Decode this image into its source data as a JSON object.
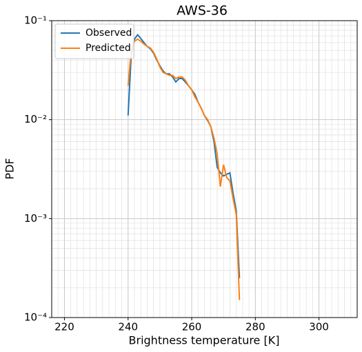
{
  "chart_data": {
    "type": "line",
    "title": "AWS-36",
    "x_label": "Brightness temperature [K]",
    "y_label": "PDF",
    "x": [
      240,
      241,
      242,
      243,
      244,
      245,
      246,
      247,
      248,
      249,
      250,
      251,
      252,
      253,
      254,
      255,
      256,
      257,
      258,
      259,
      260,
      261,
      262,
      263,
      264,
      265,
      266,
      267,
      268,
      269,
      270,
      271,
      272,
      273,
      274,
      275
    ],
    "series": [
      {
        "name": "Observed",
        "color": "#1f77b4",
        "values": [
          0.011,
          0.045,
          0.065,
          0.072,
          0.066,
          0.06,
          0.055,
          0.052,
          0.047,
          0.04,
          0.035,
          0.031,
          0.029,
          0.029,
          0.027,
          0.024,
          0.026,
          0.026,
          0.024,
          0.022,
          0.02,
          0.018,
          0.015,
          0.013,
          0.011,
          0.0098,
          0.0085,
          0.006,
          0.0033,
          0.0029,
          0.0027,
          0.0028,
          0.0029,
          0.0018,
          0.0012,
          0.00025
        ]
      },
      {
        "name": "Predicted",
        "color": "#ff7f0e",
        "values": [
          0.022,
          0.05,
          0.062,
          0.065,
          0.062,
          0.058,
          0.055,
          0.053,
          0.048,
          0.041,
          0.034,
          0.03,
          0.029,
          0.028,
          0.028,
          0.026,
          0.027,
          0.027,
          0.025,
          0.022,
          0.02,
          0.017,
          0.015,
          0.013,
          0.011,
          0.01,
          0.0085,
          0.0065,
          0.0045,
          0.0021,
          0.0035,
          0.0026,
          0.0024,
          0.0016,
          0.0011,
          0.00015
        ]
      }
    ],
    "xlim": [
      216,
      312
    ],
    "xticks": [
      220,
      240,
      260,
      280,
      300
    ],
    "ylim": [
      0.0001,
      0.1
    ],
    "yticks": [
      {
        "value": 0.0001,
        "label": "10⁻⁴"
      },
      {
        "value": 0.001,
        "label": "10⁻³"
      },
      {
        "value": 0.01,
        "label": "10⁻²"
      },
      {
        "value": 0.1,
        "label": "10⁻¹"
      }
    ],
    "ylog": true,
    "grid": true,
    "legend": "upper left"
  }
}
